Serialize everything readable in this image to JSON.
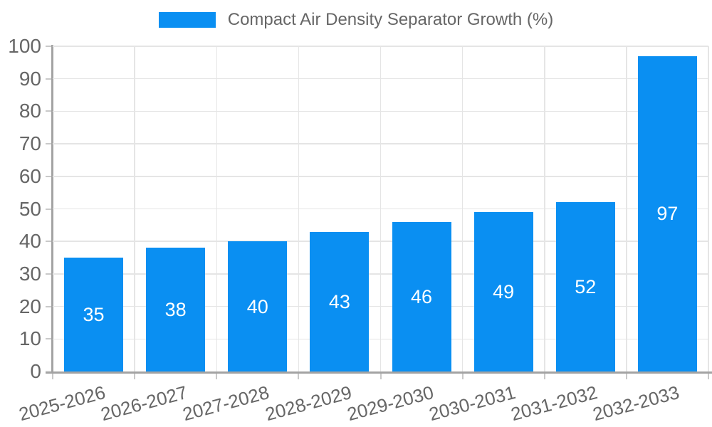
{
  "chart_data": {
    "type": "bar",
    "title": "Compact Air Density Separator Growth (%)",
    "legend": {
      "position": "top",
      "items": [
        "Compact Air Density Separator Growth (%)"
      ]
    },
    "categories": [
      "2025-2026",
      "2026-2027",
      "2027-2028",
      "2028-2029",
      "2029-2030",
      "2030-2031",
      "2031-2032",
      "2032-2033"
    ],
    "values": [
      35,
      38,
      40,
      43,
      46,
      49,
      52,
      97
    ],
    "series": [
      {
        "name": "Compact Air Density Separator Growth (%)",
        "values": [
          35,
          38,
          40,
          43,
          46,
          49,
          52,
          97
        ]
      }
    ],
    "xlabel": "",
    "ylabel": "",
    "ylim": [
      0,
      100
    ],
    "yticks": [
      0,
      10,
      20,
      30,
      40,
      50,
      60,
      70,
      80,
      90,
      100
    ],
    "grid": true,
    "gridlines": "horizontal-and-category-boundaries",
    "x_label_rotation_deg": -15,
    "value_labels": "inside-center",
    "colors": {
      "bar": "#0a8ff2",
      "grid_line": "#e5e5e5",
      "axis_line": "#a3a3a3",
      "tick_mark": "#c9c9c9",
      "text": "#666666",
      "value_label": "#ffffff",
      "background": "#ffffff"
    }
  }
}
